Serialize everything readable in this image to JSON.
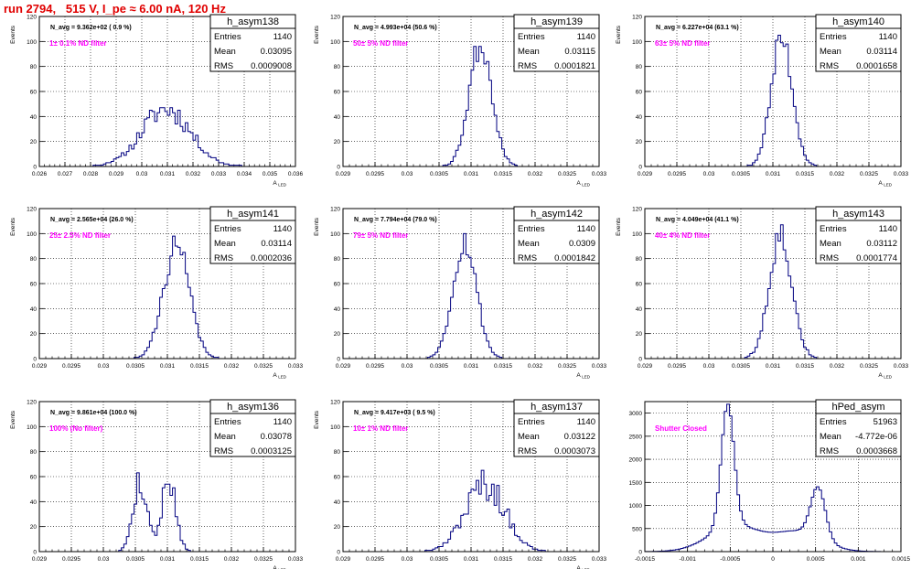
{
  "page": {
    "title": "run 2794,   515 V, I_pe ≈ 6.00 nA, 120 Hz",
    "colors": {
      "title": "#e00000",
      "histogram": "#000080",
      "annotation": "#ff00ff"
    }
  },
  "chart_data": [
    {
      "type": "histogram",
      "name": "h_asym138",
      "ylabel": "Events",
      "xlabel": "A_LED",
      "xlim": [
        0.026,
        0.036
      ],
      "ylim": [
        0,
        120
      ],
      "xticks": [
        0.026,
        0.027,
        0.028,
        0.029,
        0.03,
        0.031,
        0.032,
        0.033,
        0.034,
        0.035,
        0.036
      ],
      "xtick_labels": [
        "0.026",
        "0.027",
        "0.028",
        "0.029",
        "0.03",
        "0.031",
        "0.032",
        "0.033",
        "0.034",
        "0.035",
        "0.036"
      ],
      "yticks": [
        0,
        20,
        40,
        60,
        80,
        100,
        120
      ],
      "ytick_labels": [
        "0",
        "20",
        "40",
        "60",
        "80",
        "100",
        "120"
      ],
      "navg_label": "N_avg = 9.362e+02 ( 0.9 %)",
      "filter_label": "1± 0.1% ND filter",
      "stats": [
        [
          "Entries",
          "1140"
        ],
        [
          "Mean",
          "0.03095"
        ],
        [
          "RMS",
          "0.0009008"
        ]
      ],
      "dist": {
        "peaks": [
          {
            "mu": 0.03095,
            "sigma": 0.00095,
            "amp": 46
          }
        ],
        "seed": 11,
        "noise": 0.22
      }
    },
    {
      "type": "histogram",
      "name": "h_asym139",
      "ylabel": "Events",
      "xlabel": "A_LED",
      "xlim": [
        0.029,
        0.033
      ],
      "ylim": [
        0,
        120
      ],
      "xticks": [
        0.029,
        0.0295,
        0.03,
        0.0305,
        0.031,
        0.0315,
        0.032,
        0.0325,
        0.033
      ],
      "xtick_labels": [
        "0.029",
        "0.0295",
        "0.03",
        "0.0305",
        "0.031",
        "0.0315",
        "0.032",
        "0.0325",
        "0.033"
      ],
      "yticks": [
        0,
        20,
        40,
        60,
        80,
        100,
        120
      ],
      "ytick_labels": [
        "0",
        "20",
        "40",
        "60",
        "80",
        "100",
        "120"
      ],
      "navg_label": "N_avg = 4.993e+04 (50.6 %)",
      "filter_label": "50± 5% ND filter",
      "stats": [
        [
          "Entries",
          "1140"
        ],
        [
          "Mean",
          "0.03115"
        ],
        [
          "RMS",
          "0.0001821"
        ]
      ],
      "dist": {
        "peaks": [
          {
            "mu": 0.03115,
            "sigma": 0.00018,
            "amp": 98
          }
        ],
        "seed": 23,
        "noise": 0.12
      }
    },
    {
      "type": "histogram",
      "name": "h_asym140",
      "ylabel": "Events",
      "xlabel": "A_LED",
      "xlim": [
        0.029,
        0.033
      ],
      "ylim": [
        0,
        120
      ],
      "xticks": [
        0.029,
        0.0295,
        0.03,
        0.0305,
        0.031,
        0.0315,
        0.032,
        0.0325,
        0.033
      ],
      "xtick_labels": [
        "0.029",
        "0.0295",
        "0.03",
        "0.0305",
        "0.031",
        "0.0315",
        "0.032",
        "0.0325",
        "0.033"
      ],
      "yticks": [
        0,
        20,
        40,
        60,
        80,
        100,
        120
      ],
      "ytick_labels": [
        "0",
        "20",
        "40",
        "60",
        "80",
        "100",
        "120"
      ],
      "navg_label": "N_avg = 6.227e+04 (63.1 %)",
      "filter_label": "63± 5% ND filter",
      "stats": [
        [
          "Entries",
          "1140"
        ],
        [
          "Mean",
          "0.03114"
        ],
        [
          "RMS",
          "0.0001658"
        ]
      ],
      "dist": {
        "peaks": [
          {
            "mu": 0.03114,
            "sigma": 0.000166,
            "amp": 102
          }
        ],
        "seed": 37,
        "noise": 0.12
      }
    },
    {
      "type": "histogram",
      "name": "h_asym141",
      "ylabel": "Events",
      "xlabel": "A_LED",
      "xlim": [
        0.029,
        0.033
      ],
      "ylim": [
        0,
        120
      ],
      "xticks": [
        0.029,
        0.0295,
        0.03,
        0.0305,
        0.031,
        0.0315,
        0.032,
        0.0325,
        0.033
      ],
      "xtick_labels": [
        "0.029",
        "0.0295",
        "0.03",
        "0.0305",
        "0.031",
        "0.0315",
        "0.032",
        "0.0325",
        "0.033"
      ],
      "yticks": [
        0,
        20,
        40,
        60,
        80,
        100,
        120
      ],
      "ytick_labels": [
        "0",
        "20",
        "40",
        "60",
        "80",
        "100",
        "120"
      ],
      "navg_label": "N_avg = 2.565e+04 (26.0 %)",
      "filter_label": "25± 2.5% ND filter",
      "stats": [
        [
          "Entries",
          "1140"
        ],
        [
          "Mean",
          "0.03114"
        ],
        [
          "RMS",
          "0.0002036"
        ]
      ],
      "dist": {
        "peaks": [
          {
            "mu": 0.03114,
            "sigma": 0.000204,
            "amp": 90
          }
        ],
        "seed": 41,
        "noise": 0.12
      }
    },
    {
      "type": "histogram",
      "name": "h_asym142",
      "ylabel": "Events",
      "xlabel": "A_LED",
      "xlim": [
        0.029,
        0.033
      ],
      "ylim": [
        0,
        120
      ],
      "xticks": [
        0.029,
        0.0295,
        0.03,
        0.0305,
        0.031,
        0.0315,
        0.032,
        0.0325,
        0.033
      ],
      "xtick_labels": [
        "0.029",
        "0.0295",
        "0.03",
        "0.0305",
        "0.031",
        "0.0315",
        "0.032",
        "0.0325",
        "0.033"
      ],
      "yticks": [
        0,
        20,
        40,
        60,
        80,
        100,
        120
      ],
      "ytick_labels": [
        "0",
        "20",
        "40",
        "60",
        "80",
        "100",
        "120"
      ],
      "navg_label": "N_avg = 7.794e+04 (79.0 %)",
      "filter_label": "79± 5% ND filter",
      "stats": [
        [
          "Entries",
          "1140"
        ],
        [
          "Mean",
          "0.0309"
        ],
        [
          "RMS",
          "0.0001842"
        ]
      ],
      "dist": {
        "peaks": [
          {
            "mu": 0.0309,
            "sigma": 0.000184,
            "amp": 94
          }
        ],
        "seed": 53,
        "noise": 0.12
      }
    },
    {
      "type": "histogram",
      "name": "h_asym143",
      "ylabel": "Events",
      "xlabel": "A_LED",
      "xlim": [
        0.029,
        0.033
      ],
      "ylim": [
        0,
        120
      ],
      "xticks": [
        0.029,
        0.0295,
        0.03,
        0.0305,
        0.031,
        0.0315,
        0.032,
        0.0325,
        0.033
      ],
      "xtick_labels": [
        "0.029",
        "0.0295",
        "0.03",
        "0.0305",
        "0.031",
        "0.0315",
        "0.032",
        "0.0325",
        "0.033"
      ],
      "yticks": [
        0,
        20,
        40,
        60,
        80,
        100,
        120
      ],
      "ytick_labels": [
        "0",
        "20",
        "40",
        "60",
        "80",
        "100",
        "120"
      ],
      "navg_label": "N_avg = 4.049e+04 (41.1 %)",
      "filter_label": "40± 4% ND filter",
      "stats": [
        [
          "Entries",
          "1140"
        ],
        [
          "Mean",
          "0.03112"
        ],
        [
          "RMS",
          "0.0001774"
        ]
      ],
      "dist": {
        "peaks": [
          {
            "mu": 0.03112,
            "sigma": 0.000177,
            "amp": 100
          }
        ],
        "seed": 67,
        "noise": 0.12
      }
    },
    {
      "type": "histogram",
      "name": "h_asym136",
      "ylabel": "Events",
      "xlabel": "A_LED",
      "xlim": [
        0.029,
        0.033
      ],
      "ylim": [
        0,
        120
      ],
      "xticks": [
        0.029,
        0.0295,
        0.03,
        0.0305,
        0.031,
        0.0315,
        0.032,
        0.0325,
        0.033
      ],
      "xtick_labels": [
        "0.029",
        "0.0295",
        "0.03",
        "0.0305",
        "0.031",
        "0.0315",
        "0.032",
        "0.0325",
        "0.033"
      ],
      "yticks": [
        0,
        20,
        40,
        60,
        80,
        100,
        120
      ],
      "ytick_labels": [
        "0",
        "20",
        "40",
        "60",
        "80",
        "100",
        "120"
      ],
      "navg_label": "N_avg = 9.861e+04 (100.0 %)",
      "filter_label": "100% (No filter)",
      "stats": [
        [
          "Entries",
          "1140"
        ],
        [
          "Mean",
          "0.03078"
        ],
        [
          "RMS",
          "0.0003125"
        ]
      ],
      "dist": {
        "peaks": [
          {
            "mu": 0.03057,
            "sigma": 0.00011,
            "amp": 55
          },
          {
            "mu": 0.03102,
            "sigma": 0.00011,
            "amp": 58
          }
        ],
        "seed": 79,
        "noise": 0.2
      }
    },
    {
      "type": "histogram",
      "name": "h_asym137",
      "ylabel": "Events",
      "xlabel": "A_LED",
      "xlim": [
        0.029,
        0.033
      ],
      "ylim": [
        0,
        120
      ],
      "xticks": [
        0.029,
        0.0295,
        0.03,
        0.0305,
        0.031,
        0.0315,
        0.032,
        0.0325,
        0.033
      ],
      "xtick_labels": [
        "0.029",
        "0.0295",
        "0.03",
        "0.0305",
        "0.031",
        "0.0315",
        "0.032",
        "0.0325",
        "0.033"
      ],
      "yticks": [
        0,
        20,
        40,
        60,
        80,
        100,
        120
      ],
      "ytick_labels": [
        "0",
        "20",
        "40",
        "60",
        "80",
        "100",
        "120"
      ],
      "navg_label": "N_avg = 9.417e+03 ( 9.5 %)",
      "filter_label": "10± 1% ND filter",
      "stats": [
        [
          "Entries",
          "1140"
        ],
        [
          "Mean",
          "0.03122"
        ],
        [
          "RMS",
          "0.0003073"
        ]
      ],
      "dist": {
        "peaks": [
          {
            "mu": 0.03122,
            "sigma": 0.00031,
            "amp": 54
          }
        ],
        "seed": 97,
        "noise": 0.25
      }
    },
    {
      "type": "histogram",
      "name": "hPed_asym",
      "ylabel": "",
      "xlabel": "",
      "xlim": [
        -0.0015,
        0.0015
      ],
      "ylim": [
        0,
        3250
      ],
      "xticks": [
        -0.0015,
        -0.001,
        -0.0005,
        0,
        0.0005,
        0.001,
        0.0015
      ],
      "xtick_labels": [
        "-0.0015",
        "-0.001",
        "-0.0005",
        "0",
        "0.0005",
        "0.001",
        "0.0015"
      ],
      "yticks": [
        0,
        500,
        1000,
        1500,
        2000,
        2500,
        3000
      ],
      "ytick_labels": [
        "0",
        "500",
        "1000",
        "1500",
        "2000",
        "2500",
        "3000"
      ],
      "navg_label": "",
      "filter_label": "Shutter Closed",
      "stats": [
        [
          "Entries",
          "51963"
        ],
        [
          "Mean",
          "-4.772e-06"
        ],
        [
          "RMS",
          "0.0003668"
        ]
      ],
      "dist": {
        "peaks": [
          {
            "mu": -0.00053,
            "sigma": 7.5e-05,
            "amp": 2650
          },
          {
            "mu": -0.00045,
            "sigma": 0.0003,
            "amp": 560
          },
          {
            "mu": 0.00053,
            "sigma": 8.5e-05,
            "amp": 1100
          },
          {
            "mu": 0.0003,
            "sigma": 0.00028,
            "amp": 420
          }
        ],
        "seed": 5,
        "noise": 0.0
      }
    }
  ]
}
